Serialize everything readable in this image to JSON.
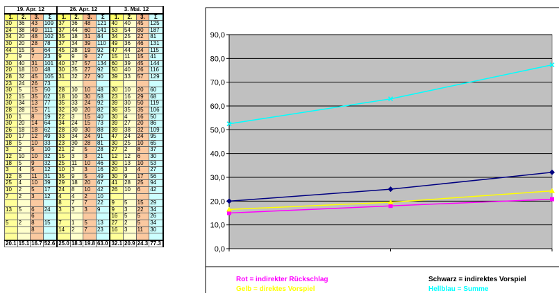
{
  "sheet": {
    "dates": [
      "19. Apr. 12",
      "26. Apr. 12",
      "3. Mai. 12"
    ],
    "col_labels": [
      "1.",
      "2.",
      "3.",
      "Σ"
    ],
    "rows": [
      [
        "30",
        "36",
        "43",
        "109",
        "37",
        "36",
        "48",
        "121",
        "40",
        "40",
        "45",
        "125"
      ],
      [
        "24",
        "38",
        "49",
        "111",
        "37",
        "44",
        "60",
        "141",
        "53",
        "54",
        "80",
        "187"
      ],
      [
        "34",
        "20",
        "48",
        "102",
        "35",
        "18",
        "31",
        "84",
        "34",
        "25",
        "22",
        "81"
      ],
      [
        "30",
        "20",
        "28",
        "78",
        "37",
        "34",
        "39",
        "110",
        "49",
        "36",
        "46",
        "131"
      ],
      [
        "44",
        "15",
        "5",
        "64",
        "45",
        "28",
        "19",
        "92",
        "47",
        "44",
        "24",
        "115"
      ],
      [
        "7",
        "9",
        "7",
        "23",
        "9",
        "9",
        "9",
        "27",
        "15",
        "11",
        "15",
        "41"
      ],
      [
        "30",
        "40",
        "31",
        "101",
        "40",
        "37",
        "57",
        "134",
        "60",
        "39",
        "45",
        "144"
      ],
      [
        "20",
        "18",
        "10",
        "48",
        "30",
        "35",
        "27",
        "92",
        "50",
        "40",
        "26",
        "116"
      ],
      [
        "28",
        "32",
        "45",
        "105",
        "31",
        "32",
        "27",
        "90",
        "39",
        "33",
        "57",
        "129"
      ],
      [
        "23",
        "24",
        "26",
        "73",
        "",
        "",
        "",
        "",
        "",
        "",
        "",
        ""
      ],
      [
        "30",
        "5",
        "15",
        "50",
        "28",
        "10",
        "10",
        "48",
        "30",
        "10",
        "20",
        "60"
      ],
      [
        "12",
        "15",
        "35",
        "62",
        "18",
        "10",
        "30",
        "58",
        "23",
        "16",
        "29",
        "68"
      ],
      [
        "30",
        "34",
        "13",
        "77",
        "35",
        "33",
        "24",
        "92",
        "39",
        "30",
        "50",
        "119"
      ],
      [
        "28",
        "28",
        "15",
        "71",
        "32",
        "30",
        "20",
        "82",
        "36",
        "35",
        "35",
        "106"
      ],
      [
        "10",
        "1",
        "8",
        "19",
        "22",
        "3",
        "15",
        "40",
        "30",
        "4",
        "16",
        "50"
      ],
      [
        "30",
        "20",
        "14",
        "64",
        "34",
        "24",
        "15",
        "73",
        "39",
        "27",
        "20",
        "86"
      ],
      [
        "26",
        "18",
        "18",
        "62",
        "28",
        "30",
        "30",
        "88",
        "39",
        "38",
        "32",
        "109"
      ],
      [
        "20",
        "17",
        "12",
        "49",
        "33",
        "34",
        "24",
        "91",
        "47",
        "24",
        "24",
        "95"
      ],
      [
        "18",
        "5",
        "10",
        "33",
        "23",
        "30",
        "28",
        "81",
        "30",
        "25",
        "10",
        "65"
      ],
      [
        "3",
        "2",
        "5",
        "10",
        "21",
        "2",
        "5",
        "28",
        "27",
        "2",
        "8",
        "37"
      ],
      [
        "12",
        "10",
        "10",
        "32",
        "15",
        "3",
        "3",
        "21",
        "12",
        "12",
        "6",
        "30"
      ],
      [
        "18",
        "5",
        "9",
        "32",
        "25",
        "11",
        "10",
        "46",
        "30",
        "13",
        "10",
        "53"
      ],
      [
        "3",
        "4",
        "5",
        "12",
        "10",
        "3",
        "3",
        "16",
        "20",
        "3",
        "4",
        "27"
      ],
      [
        "12",
        "8",
        "11",
        "31",
        "35",
        "9",
        "5",
        "49",
        "30",
        "9",
        "17",
        "56"
      ],
      [
        "25",
        "4",
        "10",
        "39",
        "29",
        "18",
        "20",
        "67",
        "41",
        "28",
        "25",
        "94"
      ],
      [
        "10",
        "2",
        "5",
        "17",
        "24",
        "8",
        "10",
        "42",
        "26",
        "10",
        "6",
        "42"
      ],
      [
        "7",
        "2",
        "3",
        "12",
        "4",
        "4",
        "2",
        "10",
        "",
        "",
        "",
        ""
      ],
      [
        "",
        "",
        "",
        "",
        "8",
        "7",
        "7",
        "22",
        "9",
        "5",
        "15",
        "29"
      ],
      [
        "13",
        "5",
        "6",
        "24",
        "3",
        "3",
        "3",
        "9",
        "9",
        "3",
        "22",
        "34"
      ],
      [
        "",
        "",
        "6",
        "",
        "",
        "",
        "",
        "",
        "16",
        "5",
        "5",
        "26"
      ],
      [
        "5",
        "2",
        "8",
        "15",
        "7",
        "1",
        "5",
        "13",
        "27",
        "2",
        "5",
        "34"
      ],
      [
        "",
        "",
        "8",
        "",
        "14",
        "2",
        "7",
        "23",
        "16",
        "3",
        "11",
        "30"
      ],
      [
        "",
        "",
        "",
        "",
        "",
        "",
        "",
        "",
        "",
        "",
        "",
        ""
      ]
    ],
    "totals": [
      "20.1",
      "15.1",
      "16.7",
      "52.6",
      "25.0",
      "18.3",
      "19.8",
      "63.0",
      "32.1",
      "20.9",
      "24.3",
      "77.3"
    ]
  },
  "chart": {
    "y_ticks": [
      "0,0",
      "10,0",
      "20,0",
      "30,0",
      "40,0",
      "50,0",
      "60,0",
      "70,0",
      "80,0",
      "90,0"
    ],
    "plot_bg": "#c0c0c0",
    "legend": [
      {
        "text": "Rot = indirekter Rückschlag",
        "color": "#ff00ff"
      },
      {
        "text": "Gelb = direktes Vorspiel",
        "color": "#ffff00"
      },
      {
        "text": "Schwarz = indirektes Vorspiel",
        "color": "#000000"
      },
      {
        "text": "Hellblau = Summe",
        "color": "#00ffff"
      }
    ]
  },
  "chart_data": {
    "type": "line",
    "x": [
      1,
      2,
      3
    ],
    "ylim": [
      0,
      90
    ],
    "grid": true,
    "series": [
      {
        "color": "#ff00ff",
        "marker": "square",
        "values": [
          15.0,
          18.0,
          20.8
        ]
      },
      {
        "color": "#ffff00",
        "marker": "triangle",
        "values": [
          16.5,
          19.5,
          24.3
        ]
      },
      {
        "color": "#000080",
        "marker": "diamond",
        "values": [
          20.0,
          25.0,
          32.1
        ]
      },
      {
        "color": "#00ffff",
        "marker": "x",
        "values": [
          52.5,
          63.0,
          77.3
        ]
      }
    ]
  }
}
